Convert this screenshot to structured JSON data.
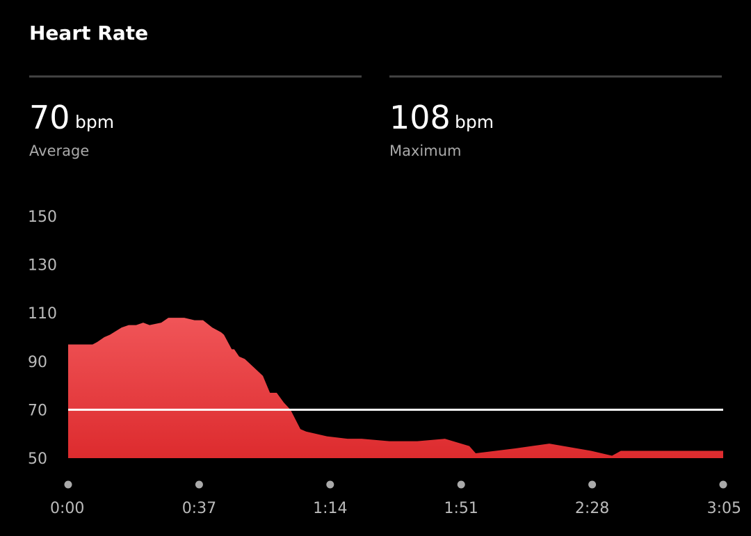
{
  "header": {
    "title": "Heart Rate"
  },
  "stats": [
    {
      "value": 70,
      "unit": "bpm",
      "label": "Average"
    },
    {
      "value": 108,
      "unit": "bpm",
      "label": "Maximum"
    }
  ],
  "chart_data": {
    "type": "area",
    "color": "#e8373a",
    "x": [
      0,
      6.9,
      8.2,
      10.2,
      11.8,
      15.1,
      17.1,
      19.2,
      21.2,
      23.0,
      26.3,
      28.3,
      32.8,
      35.7,
      38.1,
      40.7,
      43.2,
      44.0,
      46.2,
      46.9,
      48.3,
      49.9,
      55.0,
      57.0,
      58.9,
      60.9,
      62.8,
      65.6,
      67.2,
      73.1,
      78.9,
      82.9,
      90.7,
      98.6,
      106.4,
      113.3,
      115.1,
      126.1,
      135.9,
      147.7,
      153.6,
      156.1,
      185
    ],
    "values": [
      97,
      97,
      98,
      100,
      101,
      104,
      105,
      105,
      106,
      105,
      106,
      108,
      108,
      107,
      107,
      104,
      102,
      101,
      95,
      95,
      92,
      91,
      84,
      77,
      77,
      73,
      70,
      62,
      61,
      59,
      58,
      58,
      57,
      57,
      58,
      55,
      52,
      54,
      56,
      53,
      51,
      53,
      53
    ],
    "xlim": [
      0,
      185
    ],
    "xticks": [
      {
        "value": 0,
        "label": "0:00"
      },
      {
        "value": 37,
        "label": "0:37"
      },
      {
        "value": 74,
        "label": "1:14"
      },
      {
        "value": 111,
        "label": "1:51"
      },
      {
        "value": 148,
        "label": "2:28"
      },
      {
        "value": 185,
        "label": "3:05"
      }
    ],
    "ylim": [
      50,
      150
    ],
    "yticks": [
      50,
      70,
      90,
      110,
      130,
      150
    ]
  }
}
